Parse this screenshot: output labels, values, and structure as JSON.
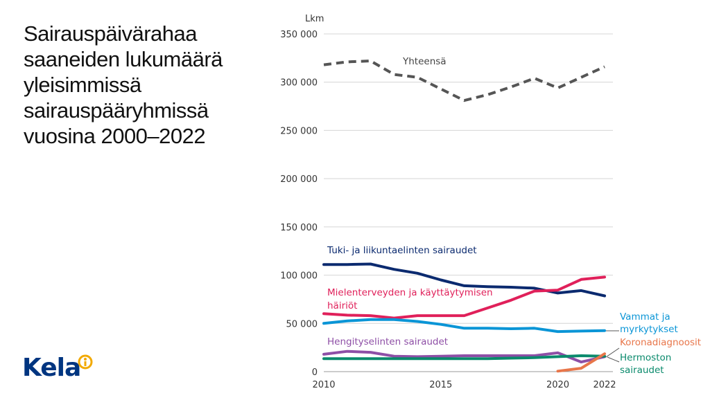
{
  "title": "Sairauspäivärahaa\nsaaneiden lukumäärä\nyleisimmissä\nsairauspääryhmissä\nvuosina 2000–2022",
  "logo": {
    "text": "Kela"
  },
  "chart_data": {
    "type": "line",
    "ylabel": "Lkm",
    "ylim": [
      0,
      350000
    ],
    "yticks": [
      0,
      50000,
      100000,
      150000,
      200000,
      250000,
      300000,
      350000
    ],
    "ytick_labels": [
      "0",
      "50 000",
      "100 000",
      "150 000",
      "200 000",
      "250 000",
      "300 000",
      "350 000"
    ],
    "xlim": [
      2010,
      2022
    ],
    "xticks": [
      2010,
      2015,
      2020,
      2022
    ],
    "xtick_labels": [
      "2010",
      "2015",
      "2020",
      "2022"
    ],
    "grid": true,
    "series": [
      {
        "name": "Yhteensä",
        "color": "#555555",
        "dashed": true,
        "x": [
          2010,
          2011,
          2012,
          2013,
          2014,
          2015,
          2016,
          2017,
          2018,
          2019,
          2020,
          2021,
          2022
        ],
        "values": [
          318000,
          321000,
          322000,
          308000,
          305000,
          293000,
          281000,
          287000,
          295000,
          304000,
          294000,
          305000,
          316000
        ]
      },
      {
        "name": "Tuki- ja liikuntaelinten sairaudet",
        "color": "#0b2a6f",
        "dashed": false,
        "x": [
          2010,
          2011,
          2012,
          2013,
          2014,
          2015,
          2016,
          2017,
          2018,
          2019,
          2020,
          2021,
          2022
        ],
        "values": [
          111000,
          111000,
          111500,
          106000,
          102000,
          95000,
          89000,
          88000,
          87500,
          86500,
          81500,
          84000,
          78500
        ]
      },
      {
        "name": "Mielenterveyden ja käyttäytymisen häiriöt",
        "color": "#e0205a",
        "dashed": false,
        "x": [
          2010,
          2011,
          2012,
          2013,
          2014,
          2015,
          2016,
          2017,
          2018,
          2019,
          2020,
          2021,
          2022
        ],
        "values": [
          60000,
          58500,
          58000,
          55500,
          58000,
          58000,
          58000,
          66000,
          74000,
          83500,
          84500,
          95500,
          98000
        ]
      },
      {
        "name": "Vammat ja myrkytykset",
        "color": "#0a95d6",
        "dashed": false,
        "x": [
          2010,
          2011,
          2012,
          2013,
          2014,
          2015,
          2016,
          2017,
          2018,
          2019,
          2020,
          2021,
          2022
        ],
        "values": [
          50000,
          52500,
          54000,
          54000,
          52000,
          49000,
          45000,
          45000,
          44500,
          45000,
          41500,
          42000,
          42500
        ]
      },
      {
        "name": "Hengityselinten sairaudet",
        "color": "#8e4fa6",
        "dashed": false,
        "x": [
          2010,
          2011,
          2012,
          2013,
          2014,
          2015,
          2016,
          2017,
          2018,
          2019,
          2020,
          2021,
          2022
        ],
        "values": [
          18000,
          21000,
          20000,
          16000,
          15500,
          16000,
          16500,
          16500,
          16500,
          16500,
          19500,
          10000,
          15500
        ]
      },
      {
        "name": "Hermoston sairaudet",
        "color": "#0a8a6c",
        "dashed": false,
        "x": [
          2010,
          2011,
          2012,
          2013,
          2014,
          2015,
          2016,
          2017,
          2018,
          2019,
          2020,
          2021,
          2022
        ],
        "values": [
          13500,
          13500,
          13500,
          13500,
          13500,
          13500,
          13500,
          13500,
          14000,
          14500,
          15500,
          16500,
          16000
        ]
      },
      {
        "name": "Koronadiagnoosit",
        "color": "#e8764a",
        "dashed": false,
        "x": [
          2020,
          2021,
          2022
        ],
        "values": [
          500,
          3500,
          18500
        ]
      }
    ],
    "annotations": [
      {
        "text": "Yhteensä",
        "color": "#444444"
      },
      {
        "text": "Tuki- ja liikuntaelinten sairaudet",
        "color": "#0b2a6f"
      },
      {
        "text": "Mielenterveyden ja käyttäytymisen",
        "color": "#e0205a"
      },
      {
        "text": "häiriöt",
        "color": "#e0205a"
      },
      {
        "text": "Vammat ja",
        "color": "#0a95d6"
      },
      {
        "text": "myrkytykset",
        "color": "#0a95d6"
      },
      {
        "text": "Hengityselinten sairaudet",
        "color": "#8e4fa6"
      },
      {
        "text": "Koronadiagnoosit",
        "color": "#e8764a"
      },
      {
        "text": "Hermoston",
        "color": "#0a8a6c"
      },
      {
        "text": "sairaudet",
        "color": "#0a8a6c"
      }
    ]
  }
}
